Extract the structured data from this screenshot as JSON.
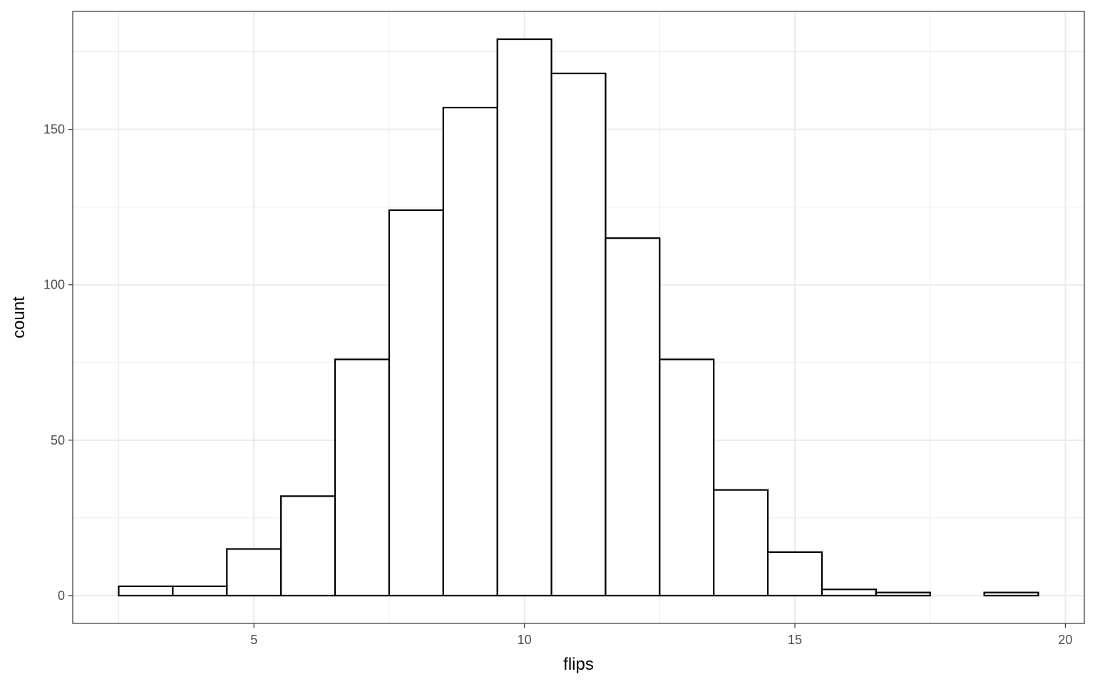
{
  "chart_data": {
    "type": "bar",
    "title": "",
    "xlabel": "flips",
    "ylabel": "count",
    "bins": [
      3,
      4,
      5,
      6,
      7,
      8,
      9,
      10,
      11,
      12,
      13,
      14,
      15,
      16,
      17,
      18,
      19
    ],
    "binwidth": 1,
    "values": [
      3,
      3,
      15,
      32,
      76,
      124,
      157,
      179,
      168,
      115,
      76,
      34,
      14,
      2,
      1,
      0,
      1
    ],
    "xlim": [
      1.65,
      20.35
    ],
    "ylim": [
      -8.95,
      187.95
    ],
    "x_ticks": [
      5,
      10,
      15,
      20
    ],
    "x_tick_labels": [
      "5",
      "10",
      "15",
      "20"
    ],
    "y_ticks": [
      0,
      50,
      100,
      150
    ],
    "y_tick_labels": [
      "0",
      "50",
      "100",
      "150"
    ],
    "grid": true,
    "legend": "none",
    "colors": {
      "bar_fill": "#ffffff",
      "bar_stroke": "#000000",
      "grid_major": "#ebebeb",
      "panel_border": "#333333",
      "tick_text": "#4d4d4d"
    }
  }
}
